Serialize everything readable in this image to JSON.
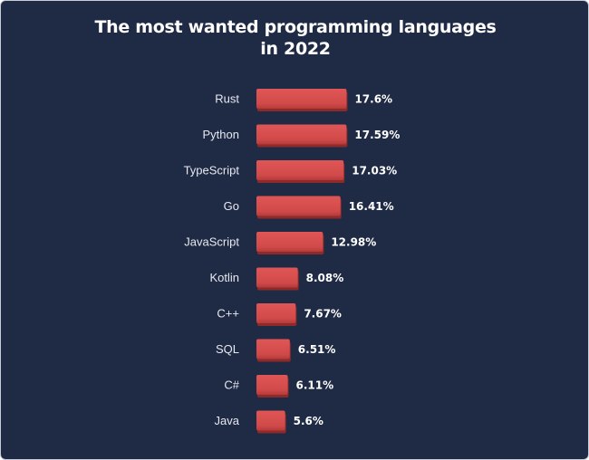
{
  "title_line1": "The most wanted programming languages",
  "title_line2": "in 2022",
  "colors": {
    "background": "#1f2a44",
    "bar": "#d14a4a",
    "bar_shadow": "#8f2a2a",
    "text": "#ffffff"
  },
  "chart_data": {
    "type": "bar",
    "orientation": "horizontal",
    "title": "The most wanted programming languages in 2022",
    "categories": [
      "Rust",
      "Python",
      "TypeScript",
      "Go",
      "JavaScript",
      "Kotlin",
      "C++",
      "SQL",
      "C#",
      "Java"
    ],
    "values": [
      17.6,
      17.59,
      17.03,
      16.41,
      12.98,
      8.08,
      7.67,
      6.51,
      6.11,
      5.6
    ],
    "value_labels": [
      "17.6%",
      "17.59%",
      "17.03%",
      "16.41%",
      "12.98%",
      "8.08%",
      "7.67%",
      "6.51%",
      "6.11%",
      "5.6%"
    ],
    "xlabel": "",
    "ylabel": "",
    "grid": false,
    "legend": "none"
  }
}
